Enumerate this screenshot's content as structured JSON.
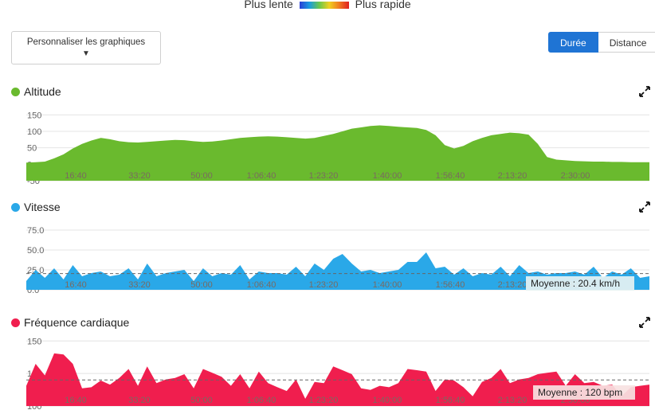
{
  "speed_legend": {
    "slow": "Plus lente",
    "fast": "Plus rapide"
  },
  "customize": {
    "label": "Personnaliser les graphiques",
    "caret": "▼"
  },
  "mode_toggle": {
    "options": [
      "Durée",
      "Distance"
    ],
    "selected": "Durée"
  },
  "panels": {
    "altitude": {
      "title": "Altitude",
      "color": "#6aba2e",
      "icon": "expand-icon"
    },
    "speed": {
      "title": "Vitesse",
      "color": "#2aa8e8",
      "icon": "expand-icon",
      "average_label": "Moyenne : 20.4 km/h"
    },
    "heart": {
      "title": "Fréquence cardiaque",
      "color": "#f01e4e",
      "icon": "expand-icon",
      "average_label": "Moyenne : 120 bpm"
    }
  },
  "chart_data": [
    {
      "type": "area",
      "title": "Altitude",
      "xlabel": "",
      "ylabel": "",
      "x_ticks": [
        "16:40",
        "33:20",
        "50:00",
        "1:06:40",
        "1:23:20",
        "1:40:00",
        "1:56:40",
        "2:13:20",
        "2:30:00"
      ],
      "y_ticks": [
        "150",
        "100",
        "50",
        "0",
        "-50"
      ],
      "ylim": [
        -50,
        170
      ],
      "series": [
        {
          "values": [
            5,
            6,
            8,
            18,
            30,
            48,
            62,
            72,
            80,
            76,
            70,
            67,
            66,
            68,
            70,
            72,
            74,
            73,
            70,
            68,
            69,
            72,
            76,
            80,
            82,
            84,
            85,
            84,
            82,
            80,
            78,
            80,
            86,
            92,
            100,
            108,
            112,
            116,
            118,
            116,
            114,
            112,
            110,
            104,
            88,
            58,
            48,
            56,
            70,
            80,
            88,
            92,
            96,
            94,
            90,
            62,
            22,
            14,
            12,
            10,
            9,
            8,
            8,
            7,
            7,
            6,
            6,
            6
          ]
        }
      ],
      "grid": true
    },
    {
      "type": "area",
      "title": "Vitesse",
      "x_ticks": [
        "16:40",
        "33:20",
        "50:00",
        "1:06:40",
        "1:23:20",
        "1:40:00",
        "1:56:40",
        "2:13:20",
        "2:30:00"
      ],
      "y_ticks": [
        "75.0",
        "50.0",
        "25.0",
        "0.0"
      ],
      "ylim": [
        0,
        85
      ],
      "average": 20.4,
      "series": [
        {
          "values": [
            14,
            22,
            18,
            24,
            16,
            28,
            20,
            18,
            26,
            14,
            22,
            24,
            16,
            30,
            20,
            18,
            26,
            22,
            14,
            24,
            20,
            18,
            22,
            28,
            16,
            20,
            24,
            18,
            22,
            26,
            20,
            30,
            28,
            36,
            48,
            30,
            26,
            22,
            24,
            20,
            28,
            32,
            38,
            44,
            30,
            26,
            22,
            24,
            20,
            18,
            22,
            26,
            20,
            28,
            24,
            20,
            22,
            18,
            24,
            20,
            22,
            26,
            18,
            20,
            22,
            24,
            18,
            14
          ]
        }
      ],
      "grid": true
    },
    {
      "type": "area",
      "title": "Fréquence cardiaque",
      "x_ticks": [
        "16:40",
        "33:20",
        "50:00",
        "1:06:40",
        "1:23:20",
        "1:40:00",
        "1:56:40",
        "2:13:20",
        "2:30:00"
      ],
      "y_ticks": [
        "150",
        "125",
        "100"
      ],
      "ylim": [
        100,
        152
      ],
      "average": 120,
      "series": [
        {
          "values": [
            118,
            130,
            126,
            138,
            142,
            130,
            116,
            112,
            122,
            114,
            124,
            126,
            118,
            128,
            120,
            118,
            124,
            122,
            116,
            126,
            128,
            120,
            118,
            122,
            116,
            124,
            120,
            112,
            114,
            118,
            108,
            116,
            120,
            128,
            130,
            122,
            116,
            110,
            118,
            112,
            120,
            126,
            130,
            124,
            114,
            118,
            122,
            112,
            110,
            116,
            124,
            126,
            120,
            118,
            124,
            122,
            128,
            124,
            118,
            122,
            120,
            116,
            118,
            114,
            110,
            112,
            118,
            114
          ]
        }
      ],
      "grid": true
    }
  ]
}
